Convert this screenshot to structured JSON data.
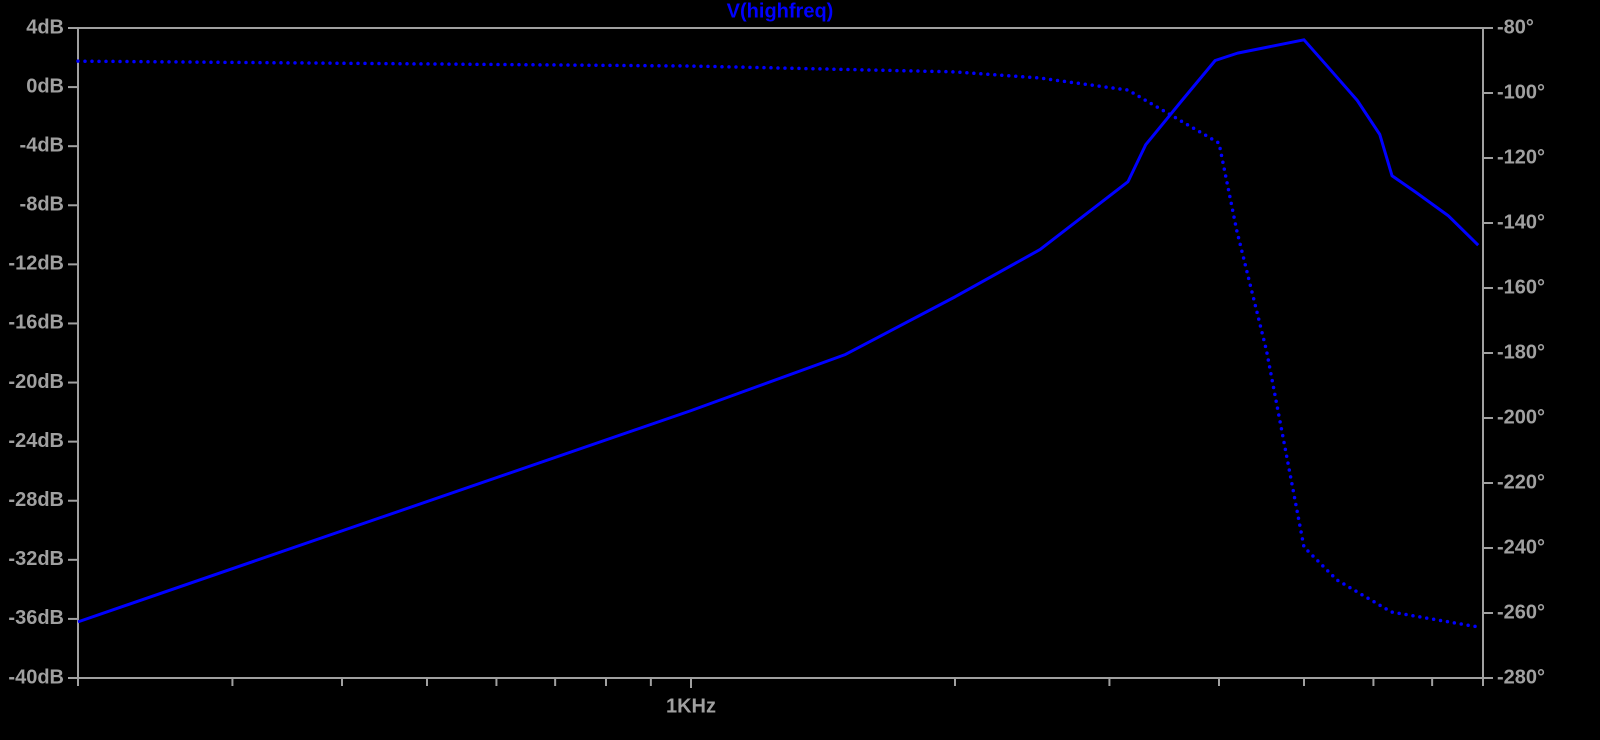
{
  "chart_data": {
    "type": "line",
    "title": "V(highfreq)",
    "title_color": "#0000ff",
    "background": "#000000",
    "axis_color": "#a0a0a0",
    "xscale": "log",
    "xlim": [
      200,
      8000
    ],
    "xticks": [
      {
        "value": 1000,
        "label": "1KHz"
      }
    ],
    "xminor_ticks": [
      200,
      300,
      400,
      500,
      600,
      700,
      800,
      900,
      2000,
      3000,
      4000,
      5000,
      6000,
      7000,
      8000
    ],
    "ylim": [
      -40,
      4
    ],
    "yticks": [
      {
        "value": 4,
        "label": "4dB"
      },
      {
        "value": 0,
        "label": "0dB"
      },
      {
        "value": -4,
        "label": "-4dB"
      },
      {
        "value": -8,
        "label": "-8dB"
      },
      {
        "value": -12,
        "label": "-12dB"
      },
      {
        "value": -16,
        "label": "-16dB"
      },
      {
        "value": -20,
        "label": "-20dB"
      },
      {
        "value": -24,
        "label": "-24dB"
      },
      {
        "value": -28,
        "label": "-28dB"
      },
      {
        "value": -32,
        "label": "-32dB"
      },
      {
        "value": -36,
        "label": "-36dB"
      },
      {
        "value": -40,
        "label": "-40dB"
      }
    ],
    "y2lim": [
      -280,
      -80
    ],
    "y2ticks": [
      {
        "value": -80,
        "label": "-80°"
      },
      {
        "value": -100,
        "label": "-100°"
      },
      {
        "value": -120,
        "label": "-120°"
      },
      {
        "value": -140,
        "label": "-140°"
      },
      {
        "value": -160,
        "label": "-160°"
      },
      {
        "value": -180,
        "label": "-180°"
      },
      {
        "value": -200,
        "label": "-200°"
      },
      {
        "value": -220,
        "label": "-220°"
      },
      {
        "value": -240,
        "label": "-240°"
      },
      {
        "value": -260,
        "label": "-260°"
      },
      {
        "value": -280,
        "label": "-280°"
      }
    ],
    "series": [
      {
        "color": "#0000ff",
        "style": "solid",
        "axis": "y",
        "x": [
          200,
          1000,
          1500,
          2000,
          2500,
          3150,
          3300,
          3630,
          3960,
          4200,
          5000,
          5300,
          5750,
          6100,
          6300,
          6700,
          7300,
          7900
        ],
        "values": [
          -36.2,
          -21.9,
          -18.1,
          -14.2,
          -11.0,
          -6.4,
          -3.9,
          -0.9,
          1.8,
          2.3,
          3.2,
          1.5,
          -0.9,
          -3.2,
          -6.0,
          -7.1,
          -8.7,
          -10.7
        ]
      },
      {
        "color": "#0000ff",
        "style": "dotted",
        "axis": "y2",
        "x": [
          200,
          1000,
          2000,
          2500,
          3150,
          4000,
          4190,
          4530,
          5000,
          5450,
          6290,
          7900
        ],
        "values": [
          -90.2,
          -91.7,
          -93.5,
          -95.4,
          -99.1,
          -115.4,
          -142.2,
          -179.1,
          -239.7,
          -249.8,
          -259.7,
          -264.3
        ]
      }
    ]
  }
}
